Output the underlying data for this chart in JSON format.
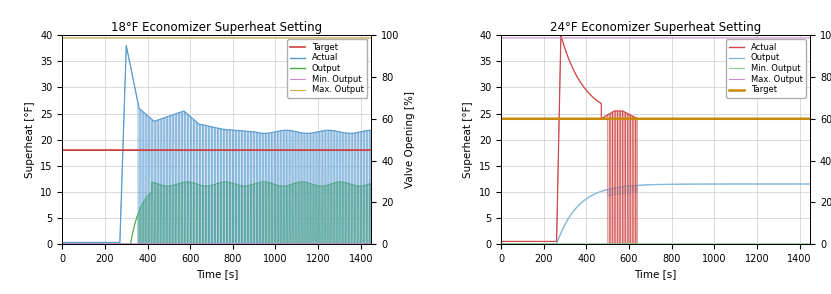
{
  "chart1": {
    "title": "18°F Economizer Superheat Setting",
    "xlim": [
      0,
      1450
    ],
    "ylim_left": [
      0,
      40
    ],
    "ylim_right": [
      0,
      100
    ],
    "xlabel": "Time [s]",
    "ylabel_left": "Superheat [°F]",
    "ylabel_right": "Valve Opening [%]",
    "target_value": 18.0,
    "target_color": "#d04040",
    "actual_color": "#5599cc",
    "actual_envelope_color": "#aaccee",
    "output_color": "#44aa44",
    "output_envelope_color": "#88cc88",
    "min_output_color": "#cc88cc",
    "max_output_color": "#ccaa55",
    "legend_order": [
      "Target",
      "Actual",
      "Output",
      "Min. Output",
      "Max. Output"
    ]
  },
  "chart2": {
    "title": "24°F Economizer Superheat Setting",
    "xlim": [
      0,
      1450
    ],
    "ylim_left": [
      0,
      40
    ],
    "ylim_right": [
      0,
      100
    ],
    "xlabel": "Time [s]",
    "ylabel_left": "Superheat [°F]",
    "ylabel_right": "Valve Opening [%]",
    "target_value": 24.0,
    "target_color": "#cc8800",
    "actual_color": "#cc4444",
    "actual_envelope_color": "#eeaaaa",
    "output_color": "#88bbdd",
    "output_envelope_color": "#bbddee",
    "min_output_color": "#88cc88",
    "max_output_color": "#cc88cc",
    "legend_order": [
      "Actual",
      "Output",
      "Min. Output",
      "Max. Output",
      "Target"
    ]
  },
  "background_color": "#ffffff",
  "grid_color": "#cccccc",
  "border_color": "#999977",
  "figsize": [
    8.31,
    2.94
  ],
  "dpi": 100
}
